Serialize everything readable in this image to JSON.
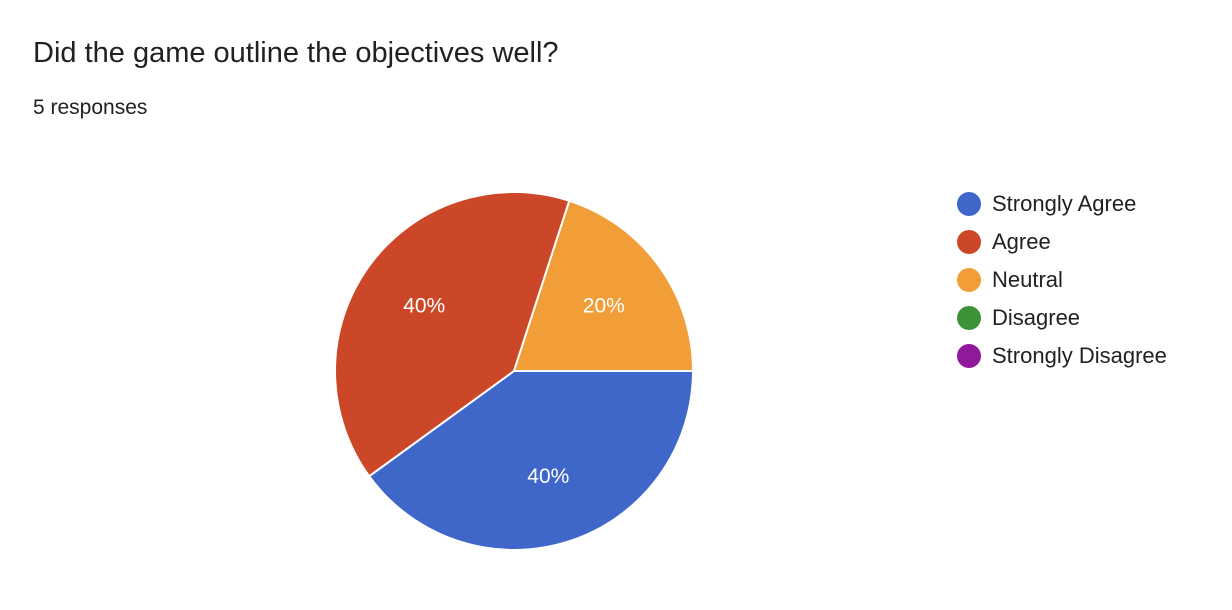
{
  "header": {
    "question": "Did the game outline the objectives well?",
    "responses": "5 responses"
  },
  "chart_data": {
    "type": "pie",
    "title": "Did the game outline the objectives well?",
    "categories": [
      "Strongly Agree",
      "Agree",
      "Neutral",
      "Disagree",
      "Strongly Disagree"
    ],
    "values": [
      40,
      40,
      20,
      0,
      0
    ],
    "value_labels": [
      "40%",
      "40%",
      "20%",
      "",
      ""
    ],
    "colors": [
      "#3f67c9",
      "#cc4727",
      "#f19e38",
      "#3c9237",
      "#8f1a9c"
    ],
    "legend_position": "right"
  }
}
